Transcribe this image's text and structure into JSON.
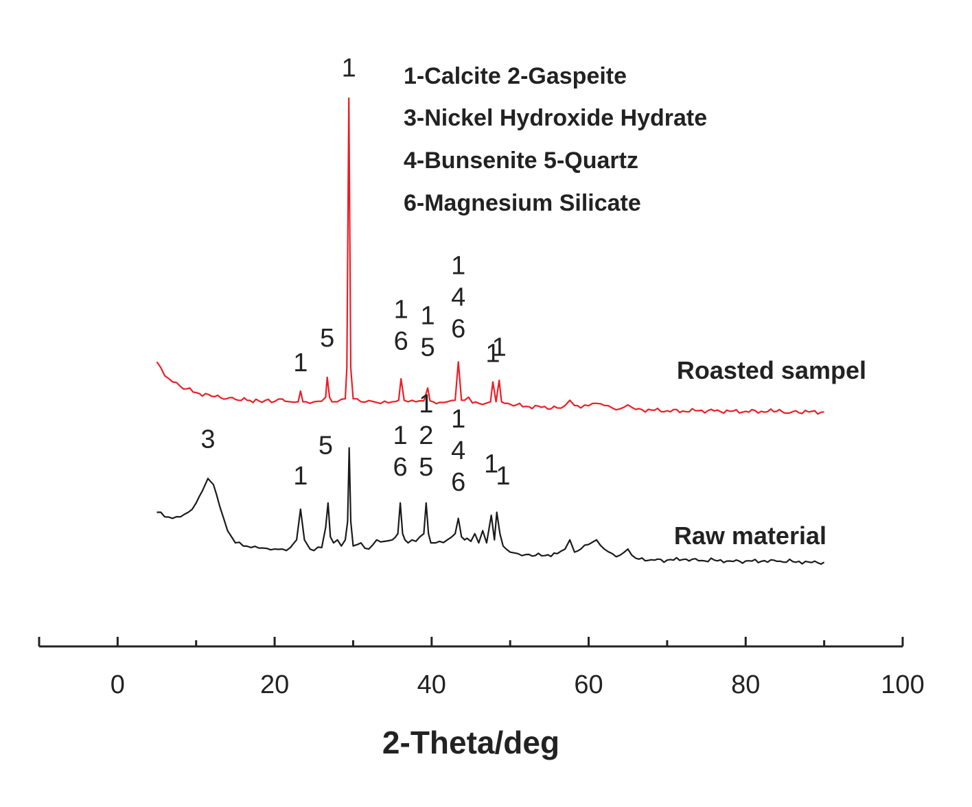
{
  "chart_data": {
    "type": "line",
    "xlabel": "2-Theta/deg",
    "xlim": [
      -10,
      100
    ],
    "x_ticks": [
      "0",
      "20",
      "40",
      "60",
      "80",
      "100"
    ],
    "x_tick_values": [
      0,
      20,
      40,
      60,
      80,
      100
    ],
    "grid": false,
    "legend_title_lines": [
      "1-Calcite 2-Gaspeite",
      "3-Nickel Hydroxide Hydrate",
      "4-Bunsenite 5-Quartz",
      "6-Magnesium Silicate"
    ],
    "series": [
      {
        "name": "Roasted sampel",
        "color": "#ee1c25",
        "x": [
          5,
          6,
          7,
          8,
          10,
          12,
          15,
          18,
          20,
          21,
          21.3,
          22,
          23,
          23.3,
          23.6,
          24,
          25,
          26,
          26.5,
          26.7,
          27,
          27.3,
          28,
          29,
          29.2,
          29.45,
          29.7,
          30,
          31,
          32,
          33,
          34,
          35,
          35.8,
          36.1,
          36.5,
          37,
          38,
          39,
          39.5,
          39.8,
          40.2,
          41,
          42,
          43,
          43.4,
          43.8,
          44.2,
          44.7,
          45.2,
          46,
          47,
          47.5,
          47.8,
          48.2,
          48.6,
          48.9,
          49.3,
          50,
          52,
          54,
          56,
          57,
          57.6,
          58.2,
          59,
          60,
          61,
          62,
          63,
          64,
          65,
          65.5,
          66,
          68,
          70,
          72,
          74,
          76,
          78,
          80,
          82,
          84,
          84.3,
          84.6,
          86,
          88,
          90
        ],
        "y": [
          14,
          9.5,
          7.5,
          6,
          4,
          2.8,
          1.8,
          1.3,
          1.1,
          1.9,
          1.2,
          1.0,
          1.0,
          4.5,
          1.0,
          1.0,
          1.0,
          1.2,
          2.5,
          9,
          2.5,
          1.0,
          1.0,
          2.0,
          12,
          100,
          12,
          2.0,
          1.0,
          1.4,
          0.8,
          1.2,
          1.0,
          1.5,
          8.5,
          1.5,
          1.0,
          1.0,
          1.3,
          5.5,
          1.3,
          1.0,
          0.8,
          1.0,
          1.5,
          14,
          1.5,
          1.5,
          2.5,
          0.6,
          0.5,
          0.6,
          1.0,
          7.5,
          1.0,
          8,
          1.0,
          0.5,
          0.2,
          -0.5,
          -0.8,
          -1.0,
          -0.2,
          1.5,
          -0.2,
          -1.0,
          -0.3,
          0.5,
          -0.2,
          -1.0,
          -1.3,
          0.0,
          -0.8,
          -1.5,
          -1.7,
          -1.9,
          -2.0,
          -1.9,
          -2.0,
          -2.1,
          -2.1,
          -2.1,
          -2.1,
          -1.5,
          -2.1,
          -2.2,
          -2.3,
          -2.3
        ]
      },
      {
        "name": "Raw material",
        "color": "#1a1a1a",
        "x": [
          5,
          6,
          7,
          8,
          9,
          10,
          10.8,
          11.5,
          12.2,
          13,
          14,
          15,
          16,
          17,
          18,
          19,
          20,
          21,
          22,
          22.8,
          23.3,
          23.8,
          24.5,
          25,
          26,
          26.5,
          26.8,
          27.1,
          27.5,
          28,
          28.5,
          29,
          29.3,
          29.5,
          29.7,
          30,
          31,
          32,
          33,
          34,
          35,
          35.7,
          36,
          36.3,
          36.6,
          37,
          38,
          38.5,
          39,
          39.3,
          39.6,
          39.9,
          40.5,
          41,
          42,
          43,
          43.4,
          43.8,
          44.2,
          44.5,
          45,
          45.5,
          46,
          46.5,
          47,
          47.6,
          48,
          48.3,
          48.7,
          49.1,
          49.5,
          50,
          51,
          52,
          54,
          56,
          57,
          57.6,
          58.2,
          59,
          60,
          61,
          62,
          63,
          64,
          65,
          65.5,
          66,
          68,
          70,
          72,
          74,
          76,
          78,
          80,
          82,
          84,
          86,
          88,
          90
        ],
        "y": [
          -35,
          -36.5,
          -37,
          -36.5,
          -35,
          -32,
          -28,
          -24,
          -26,
          -33,
          -41,
          -45,
          -46,
          -46.5,
          -46.7,
          -46.8,
          -47,
          -47,
          -46.5,
          -44,
          -34,
          -44,
          -47,
          -47.5,
          -46.5,
          -40,
          -32,
          -43,
          -45,
          -44,
          -46,
          -44,
          -38,
          -14,
          -38,
          -46,
          -45,
          -47,
          -44,
          -44.5,
          -44,
          -42,
          -32,
          -42,
          -44,
          -45,
          -44.5,
          -43,
          -42,
          -32,
          -42,
          -45,
          -45,
          -44.5,
          -44,
          -42,
          -37,
          -43,
          -44,
          -43.5,
          -44.5,
          -42,
          -45,
          -41,
          -45,
          -36,
          -44,
          -35,
          -42,
          -46,
          -47,
          -48,
          -48.5,
          -48.8,
          -49.2,
          -48.5,
          -47,
          -44,
          -48,
          -47,
          -45.5,
          -44,
          -47,
          -48.5,
          -49,
          -47,
          -49,
          -50,
          -50.5,
          -50.6,
          -50.4,
          -50.8,
          -50.6,
          -50.9,
          -50.9,
          -51,
          -51,
          -51.1,
          -51.2,
          -51.3
        ]
      }
    ],
    "peak_labels": [
      {
        "text": "1",
        "x": 29.45,
        "y": 107
      },
      {
        "text": "1",
        "x": 23.3,
        "y": 11
      },
      {
        "text": "5",
        "x": 26.7,
        "y": 19
      },
      {
        "text": "1\n6",
        "x": 36.1,
        "y": 18
      },
      {
        "text": "1\n5",
        "x": 39.5,
        "y": 16
      },
      {
        "text": "1\n4\n6",
        "x": 43.4,
        "y": 22
      },
      {
        "text": "1",
        "x": 47.8,
        "y": 14
      },
      {
        "text": "1",
        "x": 48.6,
        "y": 16
      },
      {
        "text": "3",
        "x": 11.5,
        "y": -14
      },
      {
        "text": "1",
        "x": 23.3,
        "y": -26
      },
      {
        "text": "5",
        "x": 26.5,
        "y": -16
      },
      {
        "text": "1\n6",
        "x": 36.0,
        "y": -23
      },
      {
        "text": "1\n2\n5",
        "x": 39.3,
        "y": -23
      },
      {
        "text": "1\n4\n6",
        "x": 43.4,
        "y": -28
      },
      {
        "text": "1",
        "x": 47.6,
        "y": -22
      },
      {
        "text": "1",
        "x": 49.1,
        "y": -26
      }
    ]
  }
}
